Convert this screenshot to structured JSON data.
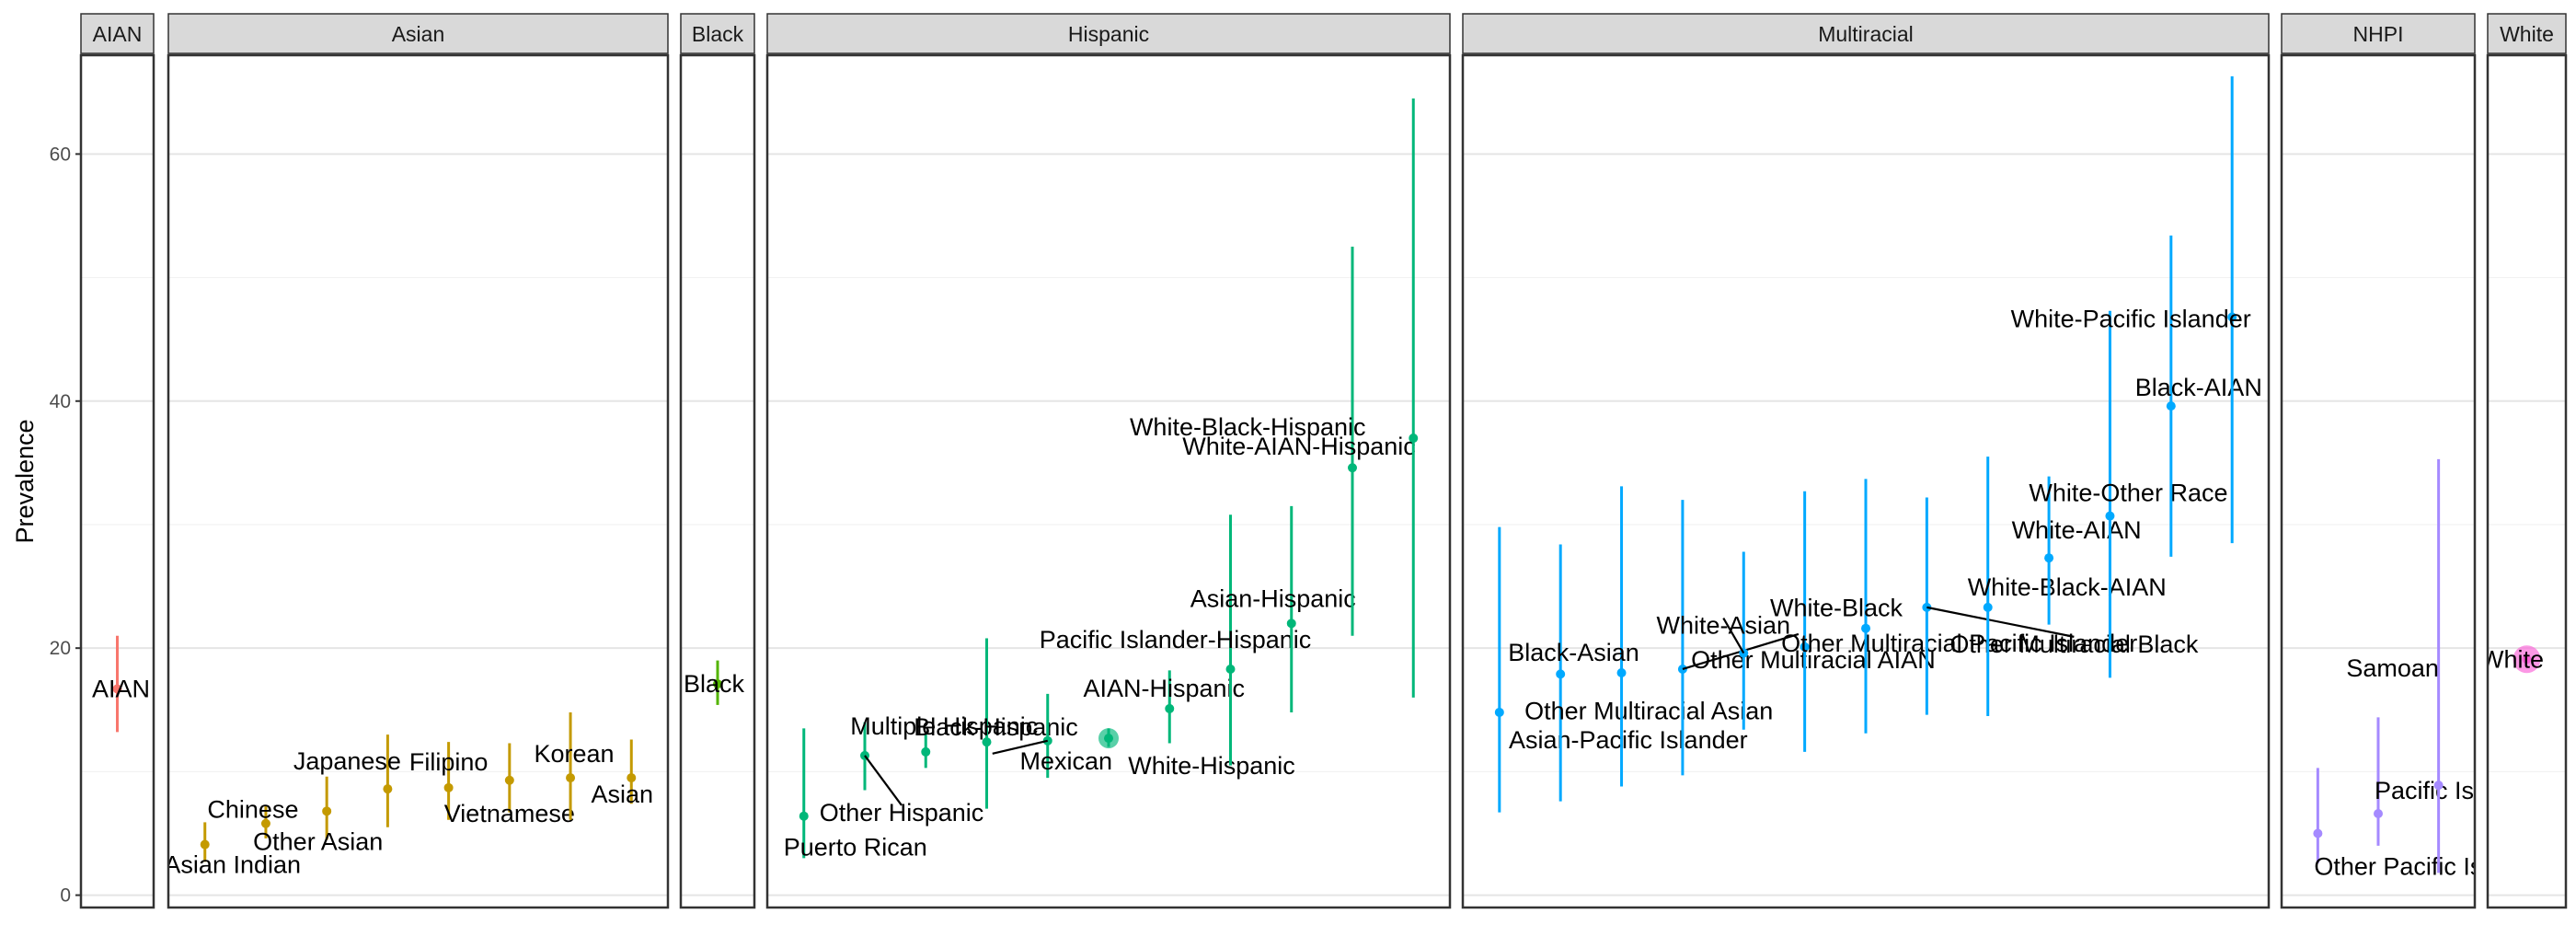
{
  "chart_data": {
    "type": "scatter",
    "ylabel": "Prevalence",
    "ylim": [
      -1,
      68
    ],
    "yticks": [
      0,
      20,
      40,
      60
    ],
    "grid": true,
    "legend": "none",
    "panels": [
      {
        "name": "AIAN",
        "color": "#F8766D",
        "points": [
          {
            "label": "AIAN",
            "value": 16.7,
            "lo": 13.2,
            "hi": 21.0,
            "label_dy": 0,
            "label_dx": 0
          }
        ]
      },
      {
        "name": "Asian",
        "color": "#C49A00",
        "points": [
          {
            "label": "Asian Indian",
            "value": 4.1,
            "lo": 2.7,
            "hi": 5.9,
            "label_dy": -3,
            "label_dx": 0
          },
          {
            "label": "Chinese",
            "value": 5.8,
            "lo": 4.6,
            "hi": 7.2,
            "label_dy": 1.0,
            "label_dx": 0
          },
          {
            "label": "Other Asian",
            "value": 6.8,
            "lo": 4.5,
            "hi": 9.6,
            "label_dy": -2.3,
            "label_dx": 0
          },
          {
            "label": "Japanese",
            "value": 8.6,
            "lo": 5.5,
            "hi": 13.0,
            "label_dy": -1.4,
            "label_dx": 0
          },
          {
            "label": "Filipino",
            "value": 8.7,
            "lo": 6.1,
            "hi": 12.4,
            "label_dy": 1.0,
            "label_dx": 0
          },
          {
            "label": "Vietnamese",
            "value": 9.3,
            "lo": 6.7,
            "hi": 12.3,
            "label_dy": -3.3,
            "label_dx": 0
          },
          {
            "label": "Korean",
            "value": 9.5,
            "lo": 6.1,
            "hi": 14.8,
            "label_dy": 1.0,
            "label_dx": 0
          },
          {
            "label": "Asian",
            "value": 9.5,
            "lo": 7.4,
            "hi": 12.6,
            "label_dy": -1.0,
            "label_dx": 0
          }
        ]
      },
      {
        "name": "Black",
        "color": "#53B400",
        "points": [
          {
            "label": "Black",
            "value": 17.1,
            "lo": 15.4,
            "hi": 19.0,
            "label_dy": 0,
            "label_dx": 0
          }
        ]
      },
      {
        "name": "Hispanic",
        "color": "#00B779",
        "points": [
          {
            "label": "Puerto Rican",
            "value": 6.4,
            "lo": 3.0,
            "hi": 13.5,
            "label_dy": -2.5,
            "label_dx": 0
          },
          {
            "label": "Other Hispanic",
            "value": 11.3,
            "lo": 8.5,
            "hi": 14.0,
            "label_dy": -4.4,
            "label_dx": 0
          },
          {
            "label": "Multiple Hispanic",
            "value": 11.6,
            "lo": 10.3,
            "hi": 13.0,
            "label_dy": 1.5,
            "label_dx": 0
          },
          {
            "label": "Black-Hispanic",
            "value": 12.4,
            "lo": 7.0,
            "hi": 20.8,
            "label_dy": 1.0,
            "label_dx": 0
          },
          {
            "label": "Mexican",
            "value": 12.5,
            "lo": 9.5,
            "hi": 16.3,
            "label_dy": -1.5,
            "label_dx": 0
          },
          {
            "label": "White-Hispanic",
            "value": 12.7,
            "lo": 12.0,
            "hi": 13.5,
            "label_dy": -1.8,
            "label_dx": 0
          },
          {
            "label": "AIAN-Hispanic",
            "value": 15.1,
            "lo": 12.3,
            "hi": 18.2,
            "label_dy": 1.6,
            "label_dx": 0
          },
          {
            "label": "Pacific Islander-Hispanic",
            "value": 18.3,
            "lo": 10.5,
            "hi": 30.8,
            "label_dy": 0.7,
            "label_dx": 0
          },
          {
            "label": "Asian-Hispanic",
            "value": 22.0,
            "lo": 14.8,
            "hi": 31.5,
            "label_dy": 1.0,
            "label_dx": 0
          },
          {
            "label": "White-AIAN-Hispanic",
            "value": 34.6,
            "lo": 21.0,
            "hi": 52.5,
            "label_dy": -1.5,
            "label_dx": 0
          },
          {
            "label": "White-Black-Hispanic",
            "value": 37.0,
            "lo": 16.0,
            "hi": 64.5,
            "label_dy": 0.5,
            "label_dx": 0
          }
        ]
      },
      {
        "name": "Multiracial",
        "color": "#00A9FF",
        "points": [
          {
            "label": "Asian-Pacific Islander",
            "value": 14.8,
            "lo": 6.7,
            "hi": 29.8,
            "label_dy": -1.5,
            "label_dx": 0
          },
          {
            "label": "Other Multiracial Asian",
            "value": 17.9,
            "lo": 7.6,
            "hi": 28.4,
            "label_dy": -1.3,
            "label_dx": 0
          },
          {
            "label": "Black-Asian",
            "value": 18.0,
            "lo": 8.8,
            "hi": 33.1,
            "label_dy": 1.5,
            "label_dx": 0
          },
          {
            "label": "Other Multiracial AIAN",
            "value": 18.3,
            "lo": 9.7,
            "hi": 32.0,
            "label_dy": 0.5,
            "label_dx": 0
          },
          {
            "label": "White-Asian",
            "value": 19.6,
            "lo": 13.4,
            "hi": 27.8,
            "label_dy": 1.5,
            "label_dx": 0
          },
          {
            "label": "Other Multiracial Pacific Islander",
            "value": 20.1,
            "lo": 11.6,
            "hi": 32.7,
            "label_dy": -2.7,
            "label_dx": 0
          },
          {
            "label": "White-Black",
            "value": 21.6,
            "lo": 13.1,
            "hi": 33.7,
            "label_dy": 1.5,
            "label_dx": 0
          },
          {
            "label": "Other Multiracial Black",
            "value": 23.3,
            "lo": 14.6,
            "hi": 32.2,
            "label_dy": -6.0,
            "label_dx": 0
          },
          {
            "label": "White-Black-AIAN",
            "value": 23.3,
            "lo": 14.5,
            "hi": 35.5,
            "label_dy": 1.0,
            "label_dx": 0
          },
          {
            "label": "White-AIAN",
            "value": 27.3,
            "lo": 21.9,
            "hi": 33.9,
            "label_dy": 1.0,
            "label_dx": 0
          },
          {
            "label": "White-Other Race",
            "value": 30.7,
            "lo": 17.6,
            "hi": 47.3,
            "label_dy": 0.2,
            "label_dx": 0
          },
          {
            "label": "Black-AIAN",
            "value": 39.6,
            "lo": 27.4,
            "hi": 53.4,
            "label_dy": 1.5,
            "label_dx": 0
          },
          {
            "label": "White-Pacific Islander",
            "value": 46.8,
            "lo": 28.5,
            "hi": 66.3,
            "label_dy": 0,
            "label_dx": 0
          }
        ]
      },
      {
        "name": "NHPI",
        "color": "#A58AFF",
        "points": [
          {
            "label": "Other Pacific Islander",
            "value": 5.0,
            "lo": 2.6,
            "hi": 10.3,
            "label_dy": -2.0,
            "label_dx": 0
          },
          {
            "label": "Pacific Islander",
            "value": 6.6,
            "lo": 4.0,
            "hi": 14.4,
            "label_dy": 1.2,
            "label_dx": 0
          },
          {
            "label": "Samoan",
            "value": 8.9,
            "lo": 1.8,
            "hi": 35.3,
            "label_dy": 8.8,
            "label_dx": 0
          }
        ]
      },
      {
        "name": "White",
        "color": "#FB61D7",
        "points": [
          {
            "label": "White",
            "value": 19.1,
            "lo": 18.8,
            "hi": 19.5,
            "label_dy": 0,
            "label_dx": 0
          }
        ]
      }
    ]
  }
}
